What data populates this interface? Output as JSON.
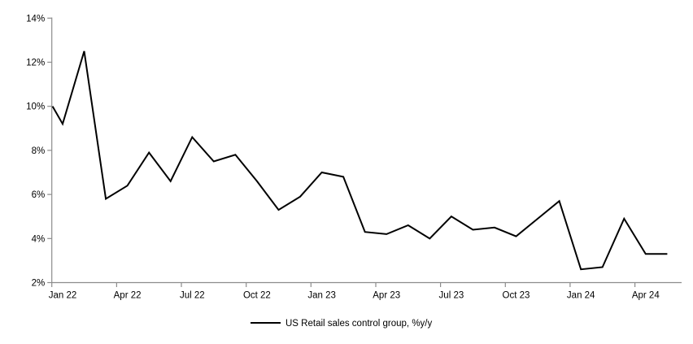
{
  "chart_data": {
    "type": "line",
    "title": "",
    "series_name": "US Retail sales control group, %y/y",
    "x": [
      "Jan 22",
      "Feb 22",
      "Mar 22",
      "Apr 22",
      "May 22",
      "Jun 22",
      "Jul 22",
      "Aug 22",
      "Sep 22",
      "Oct 22",
      "Nov 22",
      "Dec 22",
      "Jan 23",
      "Feb 23",
      "Mar 23",
      "Apr 23",
      "May 23",
      "Jun 23",
      "Jul 23",
      "Aug 23",
      "Sep 23",
      "Oct 23",
      "Nov 23",
      "Dec 23",
      "Jan 24",
      "Feb 24",
      "Mar 24",
      "Apr 24",
      "May 24"
    ],
    "values": [
      9.2,
      12.5,
      5.8,
      6.4,
      7.9,
      6.6,
      8.6,
      7.5,
      7.8,
      6.6,
      5.3,
      5.9,
      7.0,
      6.8,
      4.3,
      4.2,
      4.6,
      4.0,
      5.0,
      4.4,
      4.5,
      4.1,
      4.9,
      5.7,
      2.6,
      2.7,
      4.9,
      3.3,
      3.3
    ],
    "clip_start_value_at_axis": 10.0,
    "ylim": [
      2,
      14
    ],
    "y_tick_values": [
      14,
      12,
      10,
      8,
      6,
      4,
      2
    ],
    "y_tick_labels": [
      "14%",
      "12%",
      "10%",
      "8%",
      "6%",
      "4%",
      "2%"
    ],
    "x_tick_labels": [
      "Jan 22",
      "Apr 22",
      "Jul 22",
      "Oct 22",
      "Jan 23",
      "Apr 23",
      "Jul 23",
      "Oct 23",
      "Jan 24",
      "Apr 24"
    ],
    "grid": "off",
    "legend_position": "bottom-center",
    "line_color": "#000000",
    "axis_color": "#8c8c8c",
    "line_width": 2
  },
  "legend": {
    "label": "US Retail sales control group, %y/y"
  }
}
